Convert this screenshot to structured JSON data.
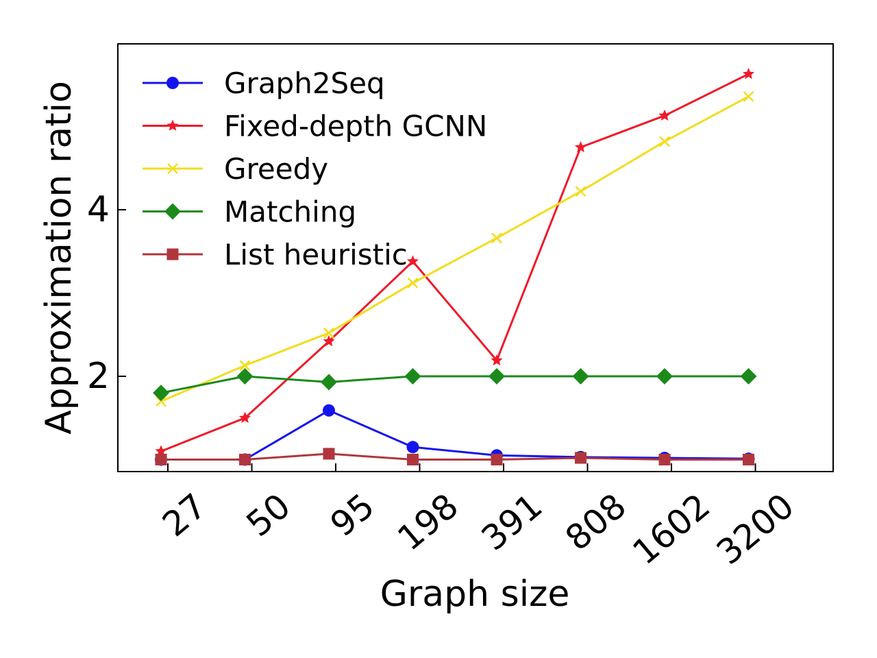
{
  "chart_data": {
    "type": "line",
    "xlabel": "Graph size",
    "ylabel": "Approximation ratio",
    "categories": [
      "27",
      "50",
      "95",
      "198",
      "391",
      "808",
      "1602",
      "3200"
    ],
    "yticks": [
      2,
      4
    ],
    "ylim": [
      0.9,
      6.0
    ],
    "grid": false,
    "legend_position": "top-left",
    "series": [
      {
        "name": "Graph2Seq",
        "color": "#1414ee",
        "marker": "circle",
        "values": [
          1.0,
          1.0,
          1.59,
          1.15,
          1.05,
          1.03,
          1.02,
          1.01
        ]
      },
      {
        "name": "Fixed-depth GCNN",
        "color": "#ee1a2a",
        "marker": "star",
        "values": [
          1.1,
          1.5,
          2.42,
          3.38,
          2.19,
          4.75,
          5.13,
          5.63
        ]
      },
      {
        "name": "Greedy",
        "color": "#f2dd1e",
        "marker": "x",
        "values": [
          1.7,
          2.13,
          2.52,
          3.12,
          3.66,
          4.22,
          4.82,
          5.36
        ]
      },
      {
        "name": "Matching",
        "color": "#1b8a1b",
        "marker": "diamond",
        "values": [
          1.8,
          2.0,
          1.93,
          2.0,
          2.0,
          2.0,
          2.0,
          2.0
        ]
      },
      {
        "name": "List heuristic",
        "color": "#b0363e",
        "marker": "square",
        "values": [
          1.0,
          1.0,
          1.07,
          1.0,
          1.0,
          1.02,
          1.0,
          1.0
        ]
      }
    ]
  }
}
